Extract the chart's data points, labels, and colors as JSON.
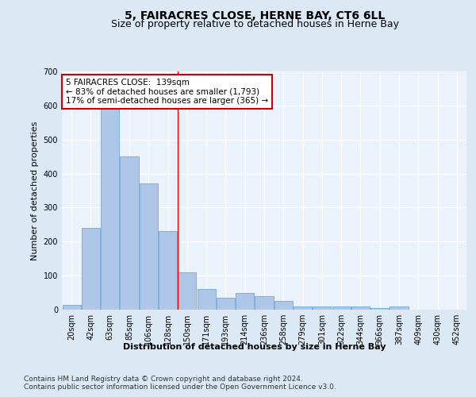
{
  "title": "5, FAIRACRES CLOSE, HERNE BAY, CT6 6LL",
  "subtitle": "Size of property relative to detached houses in Herne Bay",
  "xlabel": "Distribution of detached houses by size in Herne Bay",
  "ylabel": "Number of detached properties",
  "bin_labels": [
    "20sqm",
    "42sqm",
    "63sqm",
    "85sqm",
    "106sqm",
    "128sqm",
    "150sqm",
    "171sqm",
    "193sqm",
    "214sqm",
    "236sqm",
    "258sqm",
    "279sqm",
    "301sqm",
    "322sqm",
    "344sqm",
    "366sqm",
    "387sqm",
    "409sqm",
    "430sqm",
    "452sqm"
  ],
  "bar_values": [
    15,
    240,
    610,
    450,
    370,
    230,
    110,
    60,
    35,
    50,
    40,
    25,
    10,
    10,
    10,
    10,
    5,
    10,
    0,
    0,
    0
  ],
  "bar_color": "#aec6e8",
  "bar_edge_color": "#5a9fd4",
  "background_color": "#dce9f5",
  "plot_bg_color": "#eaf3fb",
  "grid_color": "#ffffff",
  "redline_x": 5.5,
  "redline_label": "5 FAIRACRES CLOSE:  139sqm",
  "annotation_line1": "← 83% of detached houses are smaller (1,793)",
  "annotation_line2": "17% of semi-detached houses are larger (365) →",
  "annotation_box_color": "#ffffff",
  "annotation_box_edge": "#cc0000",
  "ylim": [
    0,
    700
  ],
  "yticks": [
    0,
    100,
    200,
    300,
    400,
    500,
    600,
    700
  ],
  "footer1": "Contains HM Land Registry data © Crown copyright and database right 2024.",
  "footer2": "Contains public sector information licensed under the Open Government Licence v3.0.",
  "title_fontsize": 10,
  "subtitle_fontsize": 9,
  "axis_fontsize": 8,
  "tick_fontsize": 7,
  "footer_fontsize": 6.5,
  "annotation_fontsize": 7.5
}
